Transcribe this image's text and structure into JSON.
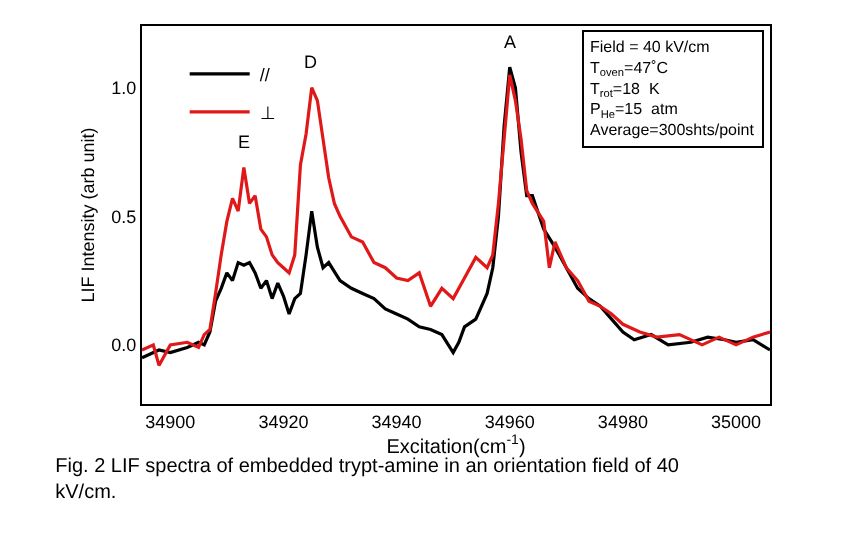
{
  "chart_data": {
    "type": "line",
    "title": "Fig. 2 LIF spectra of embedded trypt-amine in an orientation field of 40 kV/cm.",
    "xlabel": "Excitation(cm$^{-1}$)",
    "ylabel": "LIF Intensity (arb unit)",
    "xlim": [
      34895,
      35006
    ],
    "xticks": [
      34900,
      34920,
      34940,
      34960,
      34980,
      35000
    ],
    "ylim": [
      -0.23,
      1.24
    ],
    "yticks": [
      {
        "value": 0,
        "label": "0.0"
      },
      {
        "value": 0.5,
        "label": "0.5"
      },
      {
        "value": 1,
        "label": "1.0"
      }
    ],
    "grid": false,
    "legend": "top left",
    "marker": "none",
    "line_style": "solid",
    "annotations": [
      {
        "text": "A",
        "x": 34960,
        "y": 1.08
      },
      {
        "text": "D",
        "x": 34925,
        "y": 1.0
      },
      {
        "text": "E",
        "x": 34913,
        "y": 0.69
      },
      "Field = 40 kV/cm",
      "T$_{oven}$=47˚C",
      "T$_{rot}$=18  K",
      "P$_{He}$=15  atm",
      "Average=300shts/point"
    ],
    "series": [
      {
        "name": "//",
        "color": "#000000",
        "x": [
          34895,
          34898,
          34900,
          34903,
          34905,
          34906,
          34907,
          34908,
          34909,
          34910,
          34911,
          34912,
          34913,
          34914,
          34915,
          34916,
          34917,
          34918,
          34919,
          34920,
          34921,
          34922,
          34923,
          34924,
          34925,
          34926,
          34927,
          34928,
          34930,
          34932,
          34934,
          34936,
          34938,
          34940,
          34942,
          34944,
          34946,
          34948,
          34950,
          34951,
          34952,
          34954,
          34956,
          34957,
          34958,
          34959,
          34960,
          34961,
          34962,
          34963,
          34964,
          34966,
          34968,
          34970,
          34972,
          34974,
          34976,
          34978,
          34980,
          34982,
          34985,
          34988,
          34992,
          34995,
          34998,
          35000,
          35003,
          35006
        ],
        "values": [
          -0.05,
          -0.02,
          -0.03,
          -0.01,
          0.01,
          0.0,
          0.05,
          0.17,
          0.22,
          0.28,
          0.25,
          0.32,
          0.31,
          0.32,
          0.28,
          0.22,
          0.25,
          0.18,
          0.24,
          0.19,
          0.12,
          0.18,
          0.2,
          0.35,
          0.52,
          0.38,
          0.3,
          0.32,
          0.25,
          0.22,
          0.2,
          0.18,
          0.14,
          0.12,
          0.1,
          0.07,
          0.06,
          0.04,
          -0.03,
          0.01,
          0.07,
          0.1,
          0.2,
          0.3,
          0.5,
          0.85,
          1.08,
          1.0,
          0.75,
          0.58,
          0.58,
          0.45,
          0.38,
          0.3,
          0.22,
          0.18,
          0.15,
          0.1,
          0.05,
          0.02,
          0.04,
          0.0,
          0.01,
          0.03,
          0.02,
          0.01,
          0.02,
          -0.02
        ]
      },
      {
        "name": "⊥",
        "color": "#e01818",
        "x": [
          34895,
          34897,
          34898,
          34900,
          34903,
          34905,
          34906,
          34907,
          34908,
          34909,
          34910,
          34911,
          34912,
          34913,
          34914,
          34915,
          34916,
          34917,
          34918,
          34919,
          34920,
          34921,
          34922,
          34923,
          34924,
          34925,
          34926,
          34927,
          34928,
          34929,
          34930,
          34932,
          34934,
          34936,
          34938,
          34940,
          34942,
          34944,
          34946,
          34948,
          34950,
          34952,
          34954,
          34956,
          34957,
          34958,
          34959,
          34960,
          34961,
          34962,
          34963,
          34964,
          34966,
          34967,
          34968,
          34970,
          34972,
          34974,
          34976,
          34978,
          34980,
          34983,
          34986,
          34990,
          34994,
          34997,
          35000,
          35003,
          35006
        ],
        "values": [
          -0.02,
          0.0,
          -0.08,
          0.0,
          0.01,
          -0.01,
          0.04,
          0.06,
          0.2,
          0.35,
          0.48,
          0.57,
          0.52,
          0.69,
          0.55,
          0.58,
          0.45,
          0.42,
          0.35,
          0.32,
          0.3,
          0.28,
          0.35,
          0.7,
          0.82,
          1.0,
          0.95,
          0.8,
          0.65,
          0.55,
          0.5,
          0.42,
          0.4,
          0.32,
          0.3,
          0.26,
          0.25,
          0.28,
          0.15,
          0.22,
          0.18,
          0.26,
          0.34,
          0.3,
          0.35,
          0.55,
          0.8,
          1.05,
          0.95,
          0.8,
          0.6,
          0.55,
          0.48,
          0.3,
          0.4,
          0.3,
          0.25,
          0.17,
          0.15,
          0.12,
          0.08,
          0.05,
          0.03,
          0.04,
          0.0,
          0.03,
          0.0,
          0.03,
          0.05
        ]
      }
    ]
  }
}
